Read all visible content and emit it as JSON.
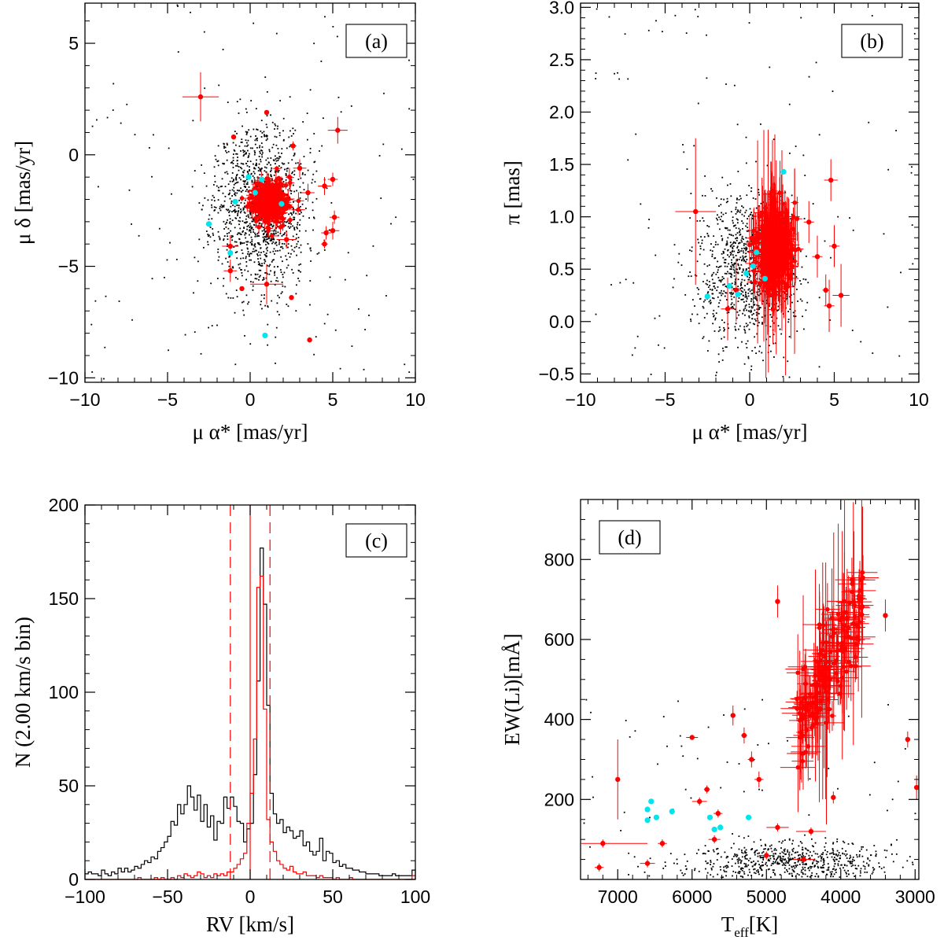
{
  "colors": {
    "axes": "#000000",
    "background_points": "#000000",
    "members": "#ff0000",
    "special": "#00e5ee",
    "dashed_limits": "#ff0000"
  },
  "chart_data": [
    {
      "id": "a",
      "type": "scatter",
      "panel_label": "(a)",
      "xlabel": "μ α* [mas/yr]",
      "ylabel": "μ δ [mas/yr]",
      "xlim": [
        -10,
        10
      ],
      "ylim": [
        -10.2,
        6.8
      ],
      "xticks": [
        -10,
        -5,
        0,
        5,
        10
      ],
      "yticks": [
        -10,
        -5,
        0,
        5
      ],
      "xtick_labels": [
        "−10",
        "−5",
        "0",
        "5",
        "10"
      ],
      "ytick_labels": [
        "−10",
        "−5",
        "0",
        "5"
      ],
      "background": {
        "n": 1400,
        "center": [
          0.6,
          -2.4
        ],
        "spread": [
          1.4,
          1.9
        ],
        "outliers": 120,
        "seed": 11
      },
      "members_cloud": {
        "n": 350,
        "center": [
          1.2,
          -2.1
        ],
        "spread": [
          0.55,
          0.45
        ],
        "err": [
          0.25,
          0.25
        ],
        "seed": 21
      },
      "members_outliers": [
        {
          "x": -3.0,
          "y": 2.6,
          "ex": 1.1,
          "ey": 1.1
        },
        {
          "x": 5.3,
          "y": 1.1,
          "ex": 0.6,
          "ey": 0.6
        },
        {
          "x": 4.5,
          "y": -1.4,
          "ex": 0.4,
          "ey": 0.4
        },
        {
          "x": 5.0,
          "y": -1.1,
          "ex": 0.3,
          "ey": 0.3
        },
        {
          "x": 4.6,
          "y": -3.5,
          "ex": 0.3,
          "ey": 0.3
        },
        {
          "x": 5.0,
          "y": -3.4,
          "ex": 0.4,
          "ey": 0.4
        },
        {
          "x": 5.1,
          "y": -2.8,
          "ex": 0.3,
          "ey": 0.3
        },
        {
          "x": 4.5,
          "y": -4.0,
          "ex": 0.2,
          "ey": 0.2
        },
        {
          "x": 1.0,
          "y": -5.8,
          "ex": 1.0,
          "ey": 0.9
        },
        {
          "x": -1.2,
          "y": -5.2,
          "ex": 0.4,
          "ey": 0.5
        },
        {
          "x": -1.2,
          "y": -4.1,
          "ex": 0.5,
          "ey": 0.5
        },
        {
          "x": 2.5,
          "y": -6.4,
          "ex": 0.05,
          "ey": 0.05
        },
        {
          "x": 3.6,
          "y": -8.3,
          "ex": 0.05,
          "ey": 0.05
        },
        {
          "x": 1.0,
          "y": 1.9,
          "ex": 0.05,
          "ey": 0.05
        },
        {
          "x": -0.5,
          "y": -6.0,
          "ex": 0.05,
          "ey": 0.05
        },
        {
          "x": 2.6,
          "y": 0.4,
          "ex": 0.2,
          "ey": 0.2
        },
        {
          "x": -1.0,
          "y": 0.8,
          "ex": 0.05,
          "ey": 0.05
        },
        {
          "x": 3.0,
          "y": -0.6,
          "ex": 0.4,
          "ey": 0.4
        },
        {
          "x": 3.5,
          "y": -1.7,
          "ex": 0.4,
          "ey": 0.4
        },
        {
          "x": 2.2,
          "y": -3.8,
          "ex": 0.6,
          "ey": 0.4
        }
      ],
      "special_points": [
        {
          "x": -2.5,
          "y": -3.1
        },
        {
          "x": -1.2,
          "y": -4.4
        },
        {
          "x": 0.9,
          "y": -8.1
        },
        {
          "x": -0.1,
          "y": -1.0
        },
        {
          "x": 0.3,
          "y": -1.7
        },
        {
          "x": -0.9,
          "y": -2.1
        },
        {
          "x": 1.9,
          "y": -2.2
        },
        {
          "x": 0.7,
          "y": -1.1
        }
      ]
    },
    {
      "id": "b",
      "type": "scatter",
      "panel_label": "(b)",
      "xlabel": "μ α* [mas/yr]",
      "ylabel": "π [mas]",
      "xlim": [
        -10,
        10
      ],
      "ylim": [
        -0.58,
        3.04
      ],
      "xticks": [
        -10,
        -5,
        0,
        5,
        10
      ],
      "yticks": [
        -0.5,
        0.0,
        0.5,
        1.0,
        1.5,
        2.0,
        2.5,
        3.0
      ],
      "xtick_labels": [
        "−10",
        "−5",
        "0",
        "5",
        "10"
      ],
      "ytick_labels": [
        "−0.5",
        "0.0",
        "0.5",
        "1.0",
        "1.5",
        "2.0",
        "2.5",
        "3.0"
      ],
      "background": {
        "n": 1200,
        "center": [
          0.0,
          0.5
        ],
        "spread": [
          1.5,
          0.35
        ],
        "outliers": 110,
        "seed": 31
      },
      "members_cloud": {
        "n": 320,
        "center": [
          1.4,
          0.72
        ],
        "spread": [
          0.55,
          0.2
        ],
        "err": [
          0.3,
          0.2
        ],
        "seed": 41
      },
      "members_outliers": [
        {
          "x": -3.2,
          "y": 1.05,
          "ex": 1.2,
          "ey": 0.7
        },
        {
          "x": 4.8,
          "y": 1.35,
          "ex": 0.4,
          "ey": 0.2
        },
        {
          "x": 5.0,
          "y": 0.72,
          "ex": 0.3,
          "ey": 0.2
        },
        {
          "x": 5.4,
          "y": 0.25,
          "ex": 0.5,
          "ey": 0.3
        },
        {
          "x": 4.5,
          "y": 0.3,
          "ex": 0.2,
          "ey": 0.15
        },
        {
          "x": 4.7,
          "y": 0.15,
          "ex": 0.3,
          "ey": 0.25
        },
        {
          "x": 4.0,
          "y": 0.62,
          "ex": 0.3,
          "ey": 0.2
        },
        {
          "x": 3.5,
          "y": 0.95,
          "ex": 0.3,
          "ey": 0.2
        },
        {
          "x": -1.3,
          "y": 0.12,
          "ex": 0.4,
          "ey": 0.3
        },
        {
          "x": -0.8,
          "y": 0.3,
          "ex": 0.3,
          "ey": 0.3
        }
      ],
      "special_points": [
        {
          "x": -2.5,
          "y": 0.24
        },
        {
          "x": 2.0,
          "y": 1.43
        },
        {
          "x": 0.9,
          "y": 0.41
        },
        {
          "x": 0.4,
          "y": 0.66
        },
        {
          "x": 0.2,
          "y": 0.53
        },
        {
          "x": -0.2,
          "y": 0.46
        },
        {
          "x": -1.2,
          "y": 0.34
        },
        {
          "x": -0.7,
          "y": 0.26
        }
      ]
    },
    {
      "id": "c",
      "type": "histogram",
      "panel_label": "(c)",
      "xlabel": "RV [km/s]",
      "ylabel": "N (2.00 km/s bin)",
      "xlim": [
        -100,
        100
      ],
      "ylim": [
        0,
        200
      ],
      "xticks": [
        -100,
        -50,
        0,
        50,
        100
      ],
      "yticks": [
        0,
        50,
        100,
        150,
        200
      ],
      "xtick_labels": [
        "−100",
        "−50",
        "0",
        "50",
        "100"
      ],
      "ytick_labels": [
        "0",
        "50",
        "100",
        "150",
        "200"
      ],
      "bin_width": 2,
      "bin_start": -100,
      "all_counts": [
        3,
        4,
        3,
        3,
        2,
        5,
        3,
        2,
        4,
        3,
        6,
        4,
        6,
        4,
        5,
        7,
        6,
        8,
        10,
        9,
        12,
        11,
        15,
        17,
        20,
        23,
        31,
        29,
        40,
        35,
        40,
        50,
        44,
        37,
        45,
        31,
        40,
        28,
        34,
        21,
        31,
        30,
        44,
        38,
        44,
        39,
        31,
        30,
        20,
        27,
        30,
        56,
        106,
        177,
        147,
        93,
        46,
        35,
        30,
        32,
        25,
        28,
        26,
        22,
        23,
        26,
        18,
        20,
        15,
        13,
        15,
        22,
        10,
        15,
        14,
        9,
        10,
        7,
        8,
        6,
        6,
        5,
        5,
        4,
        4,
        3,
        3,
        3,
        3,
        2,
        2,
        2,
        2,
        3,
        2,
        2,
        2,
        2,
        2,
        5
      ],
      "member_counts": [
        0,
        0,
        0,
        0,
        0,
        0,
        0,
        0,
        0,
        0,
        0,
        0,
        0,
        0,
        0,
        0,
        1,
        0,
        0,
        0,
        0,
        1,
        0,
        1,
        0,
        0,
        1,
        0,
        2,
        1,
        3,
        2,
        1,
        2,
        4,
        3,
        1,
        2,
        1,
        3,
        2,
        3,
        2,
        4,
        4,
        6,
        8,
        11,
        14,
        30,
        46,
        75,
        156,
        162,
        91,
        32,
        20,
        15,
        10,
        8,
        6,
        5,
        7,
        4,
        3,
        3,
        4,
        2,
        2,
        2,
        1,
        2,
        1,
        1,
        1,
        0,
        1,
        0,
        0,
        0,
        1,
        0,
        0,
        0,
        0,
        0,
        0,
        0,
        0,
        0,
        0,
        0,
        0,
        0,
        0,
        0,
        0,
        0,
        0,
        2
      ],
      "center_line": 0,
      "dashed_lines": [
        -12,
        12
      ]
    },
    {
      "id": "d",
      "type": "scatter",
      "panel_label": "(d)",
      "xlabel": "Teff[K]",
      "xlabel_main": "T",
      "xlabel_sub": "eff",
      "xlabel_unit": "[K]",
      "ylabel": "EW(Li)[mÅ]",
      "xlim": [
        7500,
        2950
      ],
      "ylim": [
        0,
        950
      ],
      "xticks": [
        7000,
        6000,
        5000,
        4000,
        3000
      ],
      "yticks": [
        200,
        400,
        600,
        800
      ],
      "xtick_labels": [
        "7000",
        "6000",
        "5000",
        "4000",
        "3000"
      ],
      "ytick_labels": [
        "200",
        "400",
        "600",
        "800"
      ],
      "background": {
        "n": 700,
        "center": [
          4700,
          40
        ],
        "spread": [
          700,
          25
        ],
        "outliers": 60,
        "seed": 51
      },
      "members_cloud": {
        "n": 160,
        "center": [
          4100,
          520
        ],
        "spread": [
          300,
          100
        ],
        "err": [
          150,
          60
        ],
        "seed": 61
      },
      "members_outliers": [
        {
          "x": 7000,
          "y": 250,
          "ex": 20,
          "ey": 100
        },
        {
          "x": 4850,
          "y": 695,
          "ex": 20,
          "ey": 40
        },
        {
          "x": 3400,
          "y": 660,
          "ex": 30,
          "ey": 40
        },
        {
          "x": 3100,
          "y": 350,
          "ex": 20,
          "ey": 20
        },
        {
          "x": 2980,
          "y": 230,
          "ex": 10,
          "ey": 30
        },
        {
          "x": 6000,
          "y": 355,
          "ex": 80,
          "ey": 5
        },
        {
          "x": 5450,
          "y": 410,
          "ex": 30,
          "ey": 25
        },
        {
          "x": 5300,
          "y": 360,
          "ex": 40,
          "ey": 20
        },
        {
          "x": 7200,
          "y": 90,
          "ex": 600,
          "ey": 10
        },
        {
          "x": 5800,
          "y": 225,
          "ex": 40,
          "ey": 10
        },
        {
          "x": 5650,
          "y": 165,
          "ex": 60,
          "ey": 10
        },
        {
          "x": 5200,
          "y": 300,
          "ex": 50,
          "ey": 20
        },
        {
          "x": 5100,
          "y": 250,
          "ex": 60,
          "ey": 20
        },
        {
          "x": 4850,
          "y": 130,
          "ex": 150,
          "ey": 10
        },
        {
          "x": 4400,
          "y": 120,
          "ex": 200,
          "ey": 10
        },
        {
          "x": 6400,
          "y": 90,
          "ex": 60,
          "ey": 10
        },
        {
          "x": 5700,
          "y": 100,
          "ex": 80,
          "ey": 10
        },
        {
          "x": 5900,
          "y": 195,
          "ex": 100,
          "ey": 10
        },
        {
          "x": 4100,
          "y": 205,
          "ex": 30,
          "ey": 15
        },
        {
          "x": 7250,
          "y": 30,
          "ex": 60,
          "ey": 10
        },
        {
          "x": 6600,
          "y": 40,
          "ex": 100,
          "ey": 10
        },
        {
          "x": 5000,
          "y": 60,
          "ex": 100,
          "ey": 10
        },
        {
          "x": 4500,
          "y": 50,
          "ex": 150,
          "ey": 10
        }
      ],
      "special_points": [
        {
          "x": 6600,
          "y": 175
        },
        {
          "x": 6550,
          "y": 195
        },
        {
          "x": 6600,
          "y": 148
        },
        {
          "x": 6480,
          "y": 155
        },
        {
          "x": 6270,
          "y": 170
        },
        {
          "x": 5760,
          "y": 155
        },
        {
          "x": 5700,
          "y": 125
        },
        {
          "x": 5620,
          "y": 130
        },
        {
          "x": 5240,
          "y": 155
        }
      ]
    }
  ]
}
